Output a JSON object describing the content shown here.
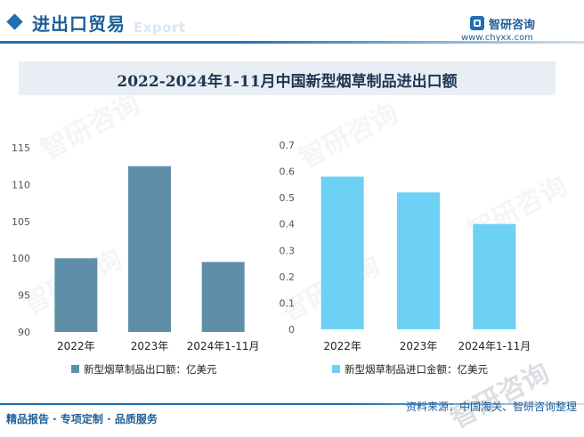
{
  "header": {
    "title": "进出口贸易",
    "ghost_text": "Export",
    "brand_name": "智研咨询",
    "brand_url": "www.chyxx.com"
  },
  "title": "2022-2024年1-11月中国新型烟草制品进出口额",
  "watermark_text": "智研咨询",
  "footer": {
    "left": "精品报告 · 专项定制 · 品质服务",
    "source": "资料来源：中国海关、智研咨询整理"
  },
  "colors": {
    "export_bar": "#5f8fa8",
    "import_bar": "#6dd0f5",
    "accent": "#1f6fb2"
  },
  "chart_data": [
    {
      "type": "bar",
      "categories": [
        "2022年",
        "2023年",
        "2024年1-11月"
      ],
      "series": [
        {
          "name": "新型烟草制品出口额：亿美元",
          "values": [
            100.0,
            112.5,
            99.5
          ]
        }
      ],
      "ylim": [
        90,
        115
      ],
      "yticks": [
        90,
        95,
        100,
        105,
        110,
        115
      ],
      "ytick_labels": [
        "90",
        "95",
        "100",
        "105",
        "110",
        "115"
      ],
      "grid": false,
      "legend": "bottom"
    },
    {
      "type": "bar",
      "categories": [
        "2022年",
        "2023年",
        "2024年1-11月"
      ],
      "series": [
        {
          "name": "新型烟草制品进口金额：亿美元",
          "values": [
            0.58,
            0.52,
            0.4
          ]
        }
      ],
      "ylim": [
        0,
        0.7
      ],
      "yticks": [
        0,
        0.1,
        0.2,
        0.3,
        0.4,
        0.5,
        0.6,
        0.7
      ],
      "ytick_labels": [
        "0",
        "0.1",
        "0.2",
        "0.3",
        "0.4",
        "0.5",
        "0.6",
        "0.7"
      ],
      "grid": false,
      "legend": "bottom"
    }
  ]
}
